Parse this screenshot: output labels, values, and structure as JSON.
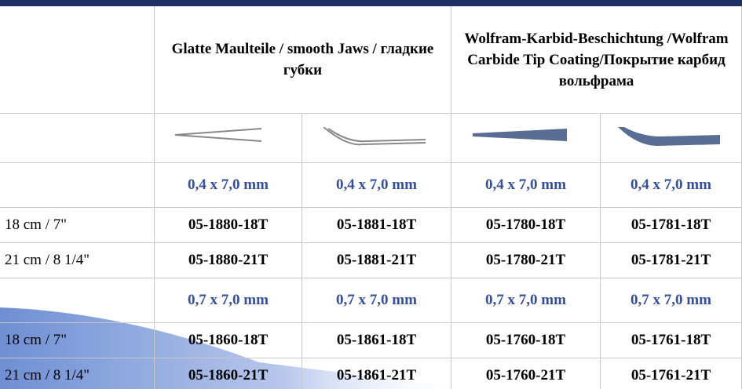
{
  "header": {
    "groups": [
      "Glatte Maulteile / smooth Jaws / гладкие губки",
      "Wolfram-Karbid-Beschichtung /Wolfram Carbide Tip Coating/Покрытие карбид вольфрама"
    ]
  },
  "sections": [
    {
      "size": [
        "0,4 x 7,0 mm",
        "0,4 x 7,0 mm",
        "0,4 x 7,0 mm",
        "0,4 x 7,0 mm"
      ],
      "rows": [
        {
          "label": "18 cm / 7\"",
          "codes": [
            "05-1880-18T",
            "05-1881-18T",
            "05-1780-18T",
            "05-1781-18T"
          ]
        },
        {
          "label": "21 cm / 8 1/4\"",
          "codes": [
            "05-1880-21T",
            "05-1881-21T",
            "05-1780-21T",
            "05-1781-21T"
          ]
        }
      ]
    },
    {
      "size": [
        "0,7 x 7,0 mm",
        "0,7 x 7,0 mm",
        "0,7 x 7,0 mm",
        "0,7 x 7,0 mm"
      ],
      "rows": [
        {
          "label": "18 cm / 7\"",
          "codes": [
            "05-1860-18T",
            "05-1861-18T",
            "05-1760-18T",
            "05-1761-18T"
          ]
        },
        {
          "label": "21 cm / 8 1/4\"",
          "codes": [
            "05-1860-21T",
            "05-1861-21T",
            "05-1760-21T",
            "05-1761-21T"
          ]
        }
      ]
    }
  ]
}
